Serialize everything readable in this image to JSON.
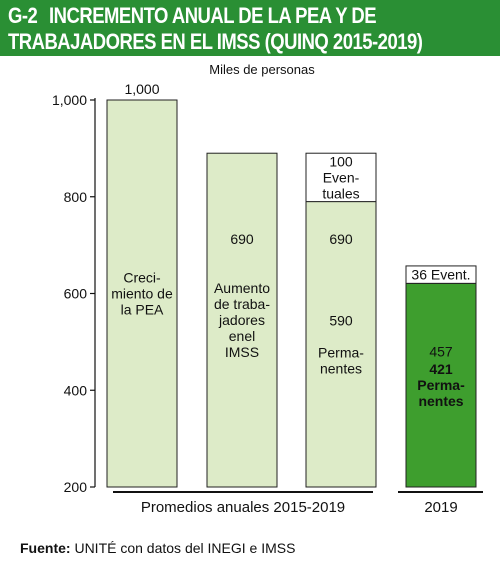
{
  "header": {
    "code": "G-2",
    "title_line1": "INCREMENTO ANUAL DE LA PEA Y DE",
    "title_line2": "TRABAJADORES EN EL IMSS (QUINQ 2015-2019)"
  },
  "source": {
    "label": "Fuente:",
    "text": "UNITÉ con datos del INEGI e IMSS"
  },
  "colors": {
    "header_bg": "#2a8f34",
    "bar_light": "#ddebc8",
    "bar_dark": "#3e9e2e",
    "white_segment": "#ffffff"
  },
  "chart_data": {
    "type": "bar",
    "subtitle": "Miles de personas",
    "ylim": [
      200,
      1000
    ],
    "yticks": [
      "200",
      "400",
      "600",
      "800",
      "1,000"
    ],
    "yticks_values": [
      200,
      400,
      600,
      800,
      1000
    ],
    "grid": false,
    "groups": [
      {
        "label": "Promedios anuales 2015-2019"
      },
      {
        "label": "2019"
      }
    ],
    "bars": [
      {
        "group": 0,
        "total": 1000,
        "total_label": "1,000",
        "segments": [
          {
            "value": 1000,
            "label_lines": [
              "Creci-",
              "miento de",
              "la PEA"
            ],
            "style": "light"
          }
        ]
      },
      {
        "group": 0,
        "total": 690,
        "total_label": "690",
        "segments": [
          {
            "value": 690,
            "label_lines": [
              "Aumento",
              "de traba-",
              "jadores",
              "enel",
              "IMSS"
            ],
            "style": "light"
          }
        ]
      },
      {
        "group": 0,
        "total": 690,
        "total_label": "690",
        "segments": [
          {
            "value": 590,
            "label_lines": [
              "590",
              "",
              "Perma-",
              "nentes"
            ],
            "style": "light"
          },
          {
            "value": 100,
            "label_lines": [
              "100",
              "Even-",
              "tuales"
            ],
            "style": "white"
          }
        ]
      },
      {
        "group": 1,
        "total": 457,
        "total_label": "457",
        "segments": [
          {
            "value": 421,
            "label_lines": [
              "421",
              "Perma-",
              "nentes"
            ],
            "style": "dark"
          },
          {
            "value": 36,
            "label_lines": [
              "36 Event."
            ],
            "style": "white"
          }
        ]
      }
    ]
  }
}
